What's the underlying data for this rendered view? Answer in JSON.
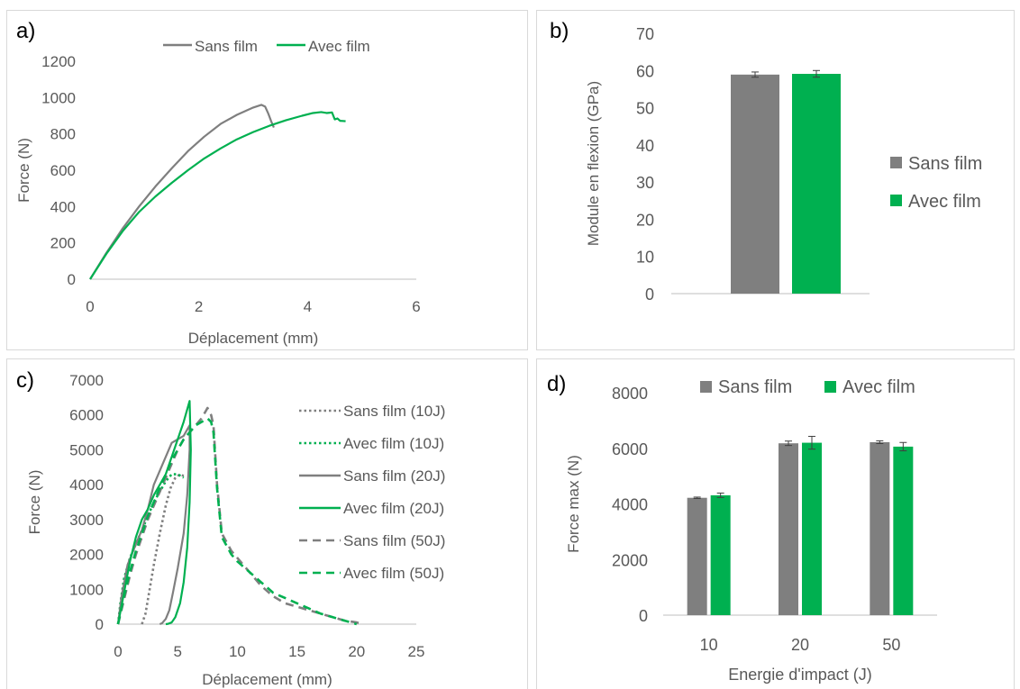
{
  "colors": {
    "sans": "#7f7f7f",
    "avec": "#00b050"
  },
  "chart_data": [
    {
      "panel": "a)",
      "type": "line",
      "xlabel": "Déplacement (mm)",
      "ylabel": "Force (N)",
      "xlim": [
        0,
        6
      ],
      "ylim": [
        0,
        1200
      ],
      "xticks": [
        "0",
        "2",
        "4",
        "6"
      ],
      "yticks": [
        "0",
        "200",
        "400",
        "600",
        "800",
        "1000",
        "1200"
      ],
      "legend_position": "top",
      "series": [
        {
          "name": "Sans film",
          "x": [
            0,
            0.3,
            0.6,
            0.9,
            1.2,
            1.5,
            1.8,
            2.1,
            2.4,
            2.7,
            3.0,
            3.15,
            3.22,
            3.28,
            3.33,
            3.38
          ],
          "y": [
            0,
            145,
            280,
            400,
            510,
            610,
            705,
            785,
            855,
            905,
            945,
            960,
            950,
            910,
            870,
            835
          ]
        },
        {
          "name": "Avec film",
          "x": [
            0,
            0.3,
            0.6,
            0.9,
            1.2,
            1.5,
            1.8,
            2.1,
            2.4,
            2.7,
            3.0,
            3.3,
            3.6,
            3.9,
            4.1,
            4.25,
            4.35,
            4.45,
            4.5,
            4.55,
            4.6,
            4.7
          ],
          "y": [
            0,
            140,
            265,
            370,
            455,
            530,
            600,
            665,
            720,
            770,
            810,
            845,
            875,
            900,
            915,
            920,
            915,
            918,
            880,
            885,
            872,
            870
          ]
        }
      ]
    },
    {
      "panel": "b)",
      "type": "bar",
      "ylabel": "Module en flexion (GPa)",
      "ylim": [
        0,
        70
      ],
      "yticks": [
        "0",
        "10",
        "20",
        "30",
        "40",
        "50",
        "60",
        "70"
      ],
      "legend_position": "right",
      "series": [
        {
          "name": "Sans film",
          "value": 58.9,
          "error": 0.7
        },
        {
          "name": "Avec film",
          "value": 59.1,
          "error": 0.9
        }
      ]
    },
    {
      "panel": "c)",
      "type": "line",
      "xlabel": "Déplacement (mm)",
      "ylabel": "Force (N)",
      "xlim": [
        0,
        25
      ],
      "ylim": [
        0,
        7000
      ],
      "xticks": [
        "0",
        "5",
        "10",
        "15",
        "20",
        "25"
      ],
      "yticks": [
        "0",
        "1000",
        "2000",
        "3000",
        "4000",
        "5000",
        "6000",
        "7000"
      ],
      "legend_position": "right",
      "series": [
        {
          "name": "Sans film (10J)",
          "style": "dotted",
          "color": "sans",
          "x": [
            2.0,
            2.3,
            2.6,
            3.0,
            3.5,
            4.0,
            4.4,
            4.8,
            5.2,
            5.5
          ],
          "y": [
            0,
            300,
            900,
            1700,
            2600,
            3400,
            3900,
            4200,
            4300,
            4250
          ]
        },
        {
          "name": "Avec film (10J)",
          "style": "dotted",
          "color": "avec",
          "x": [
            0,
            0.2,
            0.5,
            1.0,
            1.5,
            2.0,
            2.5,
            3.0,
            3.5,
            4.0,
            4.5,
            5.0,
            5.5
          ],
          "y": [
            0,
            600,
            1300,
            1900,
            2300,
            2700,
            3100,
            3500,
            3800,
            4100,
            4300,
            4300,
            4200
          ]
        },
        {
          "name": "Sans film (20J)",
          "style": "solid",
          "color": "sans",
          "x": [
            0,
            0.3,
            0.8,
            1.5,
            2.0,
            2.5,
            3.0,
            3.5,
            4.0,
            4.5,
            5.0,
            5.5,
            6.0,
            6.0,
            5.8,
            5.5,
            5.0,
            4.6,
            4.3,
            4.0,
            3.7,
            3.5
          ],
          "y": [
            0,
            800,
            1700,
            2300,
            2700,
            3300,
            4000,
            4400,
            4800,
            5200,
            5300,
            5400,
            5700,
            5000,
            3700,
            2600,
            1600,
            900,
            400,
            150,
            30,
            0
          ]
        },
        {
          "name": "Avec film (20J)",
          "style": "solid",
          "color": "avec",
          "x": [
            0,
            0.5,
            1.0,
            1.5,
            2.0,
            2.5,
            3.0,
            3.5,
            4.0,
            4.5,
            5.0,
            5.5,
            6.0,
            6.1,
            6.0,
            5.8,
            5.5,
            5.2,
            4.8,
            4.5,
            4.2,
            4.0
          ],
          "y": [
            0,
            900,
            1800,
            2500,
            3000,
            3300,
            3700,
            4000,
            4300,
            4800,
            5300,
            5800,
            6400,
            5000,
            3500,
            2200,
            1200,
            600,
            200,
            50,
            10,
            0
          ]
        },
        {
          "name": "Sans film (50J)",
          "style": "dashed",
          "color": "sans",
          "x": [
            0,
            0.5,
            1.0,
            1.5,
            2.0,
            2.5,
            3.0,
            3.5,
            4.0,
            4.5,
            5.0,
            5.5,
            6.0,
            6.5,
            7.0,
            7.5,
            7.8,
            8.0,
            8.3,
            8.7,
            9.5,
            10.0,
            11.0,
            12.0,
            13.0,
            14.0,
            15.0,
            16.0,
            17.0,
            18.0,
            19.0,
            20.0,
            20.5
          ],
          "y": [
            0,
            700,
            1400,
            2000,
            2500,
            3000,
            3400,
            3800,
            4200,
            4600,
            5000,
            5300,
            5500,
            5700,
            5900,
            6200,
            6000,
            5700,
            4000,
            2600,
            2100,
            1900,
            1500,
            1100,
            800,
            600,
            500,
            400,
            300,
            200,
            100,
            50,
            0
          ]
        },
        {
          "name": "Avec film (50J)",
          "style": "dashed",
          "color": "avec",
          "x": [
            0,
            0.5,
            1.0,
            1.5,
            2.0,
            2.5,
            3.0,
            3.5,
            4.0,
            4.5,
            5.0,
            5.5,
            6.0,
            6.5,
            7.0,
            7.5,
            7.8,
            8.0,
            8.3,
            8.7,
            9.5,
            10.0,
            11.0,
            12.0,
            13.0,
            14.0,
            15.0,
            16.0,
            17.0,
            18.0,
            19.0,
            20.0
          ],
          "y": [
            0,
            800,
            1500,
            2100,
            2600,
            3100,
            3500,
            3900,
            4300,
            4700,
            5000,
            5300,
            5500,
            5700,
            5800,
            5900,
            5800,
            5500,
            3900,
            2500,
            2000,
            1800,
            1500,
            1200,
            900,
            750,
            600,
            450,
            300,
            200,
            100,
            0
          ]
        }
      ]
    },
    {
      "panel": "d)",
      "type": "bar",
      "xlabel": "Energie d'impact (J)",
      "ylabel": "Force max (N)",
      "ylim": [
        0,
        8000
      ],
      "yticks": [
        "0",
        "2000",
        "4000",
        "6000",
        "8000"
      ],
      "categories": [
        "10",
        "20",
        "50"
      ],
      "legend_position": "top",
      "series": [
        {
          "name": "Sans film",
          "values": [
            4220,
            6180,
            6220
          ],
          "errors": [
            25,
            80,
            50
          ]
        },
        {
          "name": "Avec film",
          "values": [
            4310,
            6200,
            6060
          ],
          "errors": [
            80,
            230,
            150
          ]
        }
      ]
    }
  ]
}
